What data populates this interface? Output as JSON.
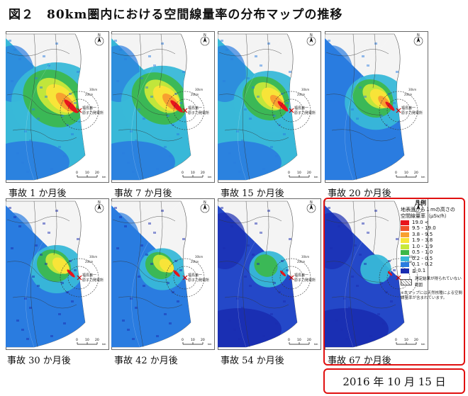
{
  "title": "図２　80km圏内における空間線量率の分布マップの推移",
  "panels": [
    {
      "caption": "事故 1 か月後",
      "level": 1.0
    },
    {
      "caption": "事故 7 か月後",
      "level": 0.88
    },
    {
      "caption": "事故 15 か月後",
      "level": 0.7
    },
    {
      "caption": "事故 20 か月後",
      "level": 0.58
    },
    {
      "caption": "事故 30 か月後",
      "level": 0.45
    },
    {
      "caption": "事故 42 か月後",
      "level": 0.34
    },
    {
      "caption": "事故 54 か月後",
      "level": 0.24
    },
    {
      "caption": "事故 67 か月後",
      "level": 0.12
    }
  ],
  "map_labels": {
    "north": "N",
    "plant_line1": "福島第一",
    "plant_line2": "原子力発電所",
    "scale_0": "0",
    "scale_10": "10",
    "scale_20": "20",
    "scale_unit": "km",
    "ring_20": "20km",
    "ring_30": "30km"
  },
  "legend": {
    "title": "凡例",
    "subtitle_line1": "地表面から１mの高さの",
    "subtitle_line2": "空間線量率（μSv/h）",
    "entries": [
      {
        "label": "19.0 <",
        "color": "#e8141c"
      },
      {
        "label": "9.5 - 19.0",
        "color": "#f0502a"
      },
      {
        "label": "3.8 - 9.5",
        "color": "#f8a030"
      },
      {
        "label": "1.9 - 3.8",
        "color": "#f8e438"
      },
      {
        "label": "1.0 - 1.9",
        "color": "#c8e83a"
      },
      {
        "label": "0.5 - 1.0",
        "color": "#3cb848"
      },
      {
        "label": "0.2 - 0.5",
        "color": "#38b8d8"
      },
      {
        "label": "0.1 - 0.2",
        "color": "#2a7ce0"
      },
      {
        "label": "≦ 0.1",
        "color": "#1a2cb0"
      }
    ],
    "hatch_label": "測定結果が得られていない範囲",
    "note": "※本マップには天然核種による空間線量率が含まれています。"
  },
  "date": "2016 年 10 月 15 日",
  "colors": {
    "highlight_box": "#e01010",
    "ocean": "#ffffff",
    "boundary": "#333333"
  }
}
